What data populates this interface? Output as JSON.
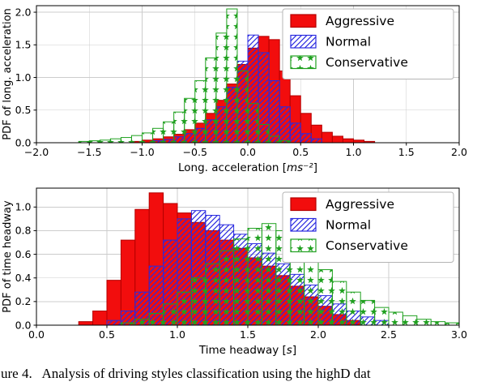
{
  "figure": {
    "caption": "ure 4.   Analysis of driving styles classification using the highD dat"
  },
  "colors": {
    "aggressive": "#f20d0d",
    "aggressive_edge": "#b40000",
    "normal": "#2a2ae0",
    "conservative": "#1fa01f",
    "grid": "#cccccc",
    "axis": "#000000",
    "legend_border": "#b5b5b5"
  },
  "chart_data": [
    {
      "type": "histogram",
      "title": "",
      "xlabel": "Long. acceleration [ms⁻²]",
      "ylabel": "PDF of long. acceleration",
      "xlim": [
        -2.0,
        2.0
      ],
      "ylim": [
        0,
        2.1
      ],
      "bin_width": 0.1,
      "grid": true,
      "legend_position": "upper right",
      "xticks": {
        "values": [
          -2.0,
          -1.5,
          -1.0,
          -0.5,
          0.0,
          0.5,
          1.0,
          1.5,
          2.0
        ],
        "labels": [
          "−2.0",
          "−1.5",
          "−1.0",
          "−0.5",
          "0.0",
          "0.5",
          "1.0",
          "1.5",
          "2.0"
        ]
      },
      "yticks": {
        "values": [
          0,
          0.5,
          1.0,
          1.5,
          2.0
        ],
        "labels": [
          "0.0",
          "0.5",
          "1.0",
          "1.5",
          "2.0"
        ]
      },
      "series": [
        {
          "name": "Aggressive",
          "style": "solid",
          "bin_start": -1.1,
          "values": [
            0.02,
            0.04,
            0.06,
            0.09,
            0.13,
            0.2,
            0.3,
            0.45,
            0.65,
            0.9,
            1.2,
            1.45,
            1.63,
            1.58,
            1.1,
            0.72,
            0.45,
            0.27,
            0.16,
            0.1,
            0.06,
            0.04,
            0.02
          ]
        },
        {
          "name": "Normal",
          "style": "hatch-diagonal",
          "bin_start": -0.9,
          "values": [
            0.03,
            0.05,
            0.09,
            0.14,
            0.22,
            0.35,
            0.55,
            0.85,
            1.25,
            1.65,
            1.38,
            0.95,
            0.55,
            0.3,
            0.14,
            0.06
          ]
        },
        {
          "name": "Conservative",
          "style": "hatch-stars",
          "bin_start": -1.6,
          "values": [
            0.02,
            0.03,
            0.04,
            0.06,
            0.08,
            0.11,
            0.15,
            0.22,
            0.32,
            0.47,
            0.68,
            0.95,
            1.3,
            1.68,
            2.05,
            1.1,
            0.6,
            0.28,
            0.1,
            0.03
          ]
        }
      ]
    },
    {
      "type": "histogram",
      "title": "",
      "xlabel": "Time headway [s]",
      "ylabel": "PDF of time headway",
      "xlim": [
        0.0,
        3.0
      ],
      "ylim": [
        0,
        1.16
      ],
      "bin_width": 0.1,
      "grid": true,
      "legend_position": "upper right",
      "xticks": {
        "values": [
          0.0,
          0.5,
          1.0,
          1.5,
          2.0,
          2.5,
          3.0
        ],
        "labels": [
          "0.0",
          "0.5",
          "1.0",
          "1.5",
          "2.0",
          "2.5",
          "3.0"
        ]
      },
      "yticks": {
        "values": [
          0,
          0.2,
          0.4,
          0.6,
          0.8,
          1.0
        ],
        "labels": [
          "0.0",
          "0.2",
          "0.4",
          "0.6",
          "0.8",
          "1.0"
        ]
      },
      "series": [
        {
          "name": "Aggressive",
          "style": "solid",
          "bin_start": 0.3,
          "values": [
            0.03,
            0.12,
            0.38,
            0.72,
            0.98,
            1.12,
            1.03,
            0.95,
            0.87,
            0.8,
            0.72,
            0.65,
            0.57,
            0.5,
            0.42,
            0.33,
            0.24,
            0.16,
            0.09,
            0.04
          ]
        },
        {
          "name": "Normal",
          "style": "hatch-diagonal",
          "bin_start": 0.5,
          "values": [
            0.04,
            0.12,
            0.28,
            0.5,
            0.72,
            0.9,
            0.97,
            0.93,
            0.85,
            0.77,
            0.69,
            0.61,
            0.52,
            0.43,
            0.34,
            0.25,
            0.18,
            0.12,
            0.07,
            0.04
          ]
        },
        {
          "name": "Conservative",
          "style": "hatch-stars",
          "bin_start": 0.6,
          "values": [
            0.02,
            0.05,
            0.1,
            0.18,
            0.28,
            0.4,
            0.52,
            0.63,
            0.73,
            0.82,
            0.86,
            0.8,
            0.7,
            0.58,
            0.47,
            0.37,
            0.28,
            0.21,
            0.15,
            0.11,
            0.08,
            0.05,
            0.03,
            0.02
          ]
        }
      ]
    }
  ]
}
